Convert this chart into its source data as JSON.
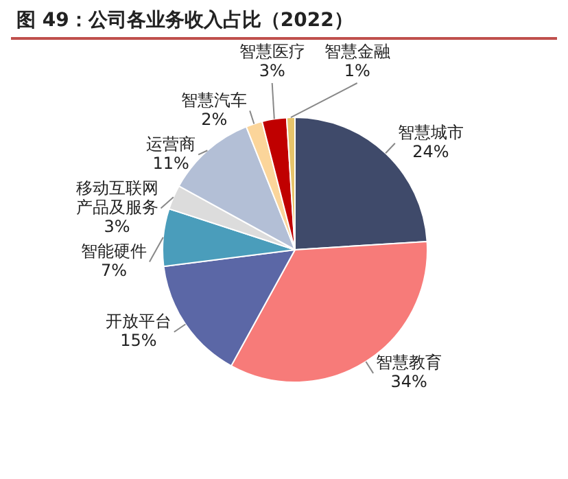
{
  "chart_data": {
    "type": "pie",
    "title": "图 49：公司各业务收入占比（2022）",
    "categories": [
      "智慧城市",
      "智慧教育",
      "开放平台",
      "智能硬件",
      "移动互联网产品及服务",
      "运营商",
      "智慧汽车",
      "智慧医疗",
      "智慧金融"
    ],
    "values": [
      24,
      34,
      15,
      7,
      3,
      11,
      2,
      3,
      1
    ],
    "colors": [
      "#3f4a6a",
      "#f77b79",
      "#5b67a6",
      "#4a9dbb",
      "#dcdcdc",
      "#b3bfd6",
      "#fbd59a",
      "#c00000",
      "#e6c46a"
    ],
    "value_labels": [
      "24%",
      "34%",
      "15%",
      "7%",
      "3%",
      "11%",
      "2%",
      "3%",
      "1%"
    ],
    "legend": false
  }
}
